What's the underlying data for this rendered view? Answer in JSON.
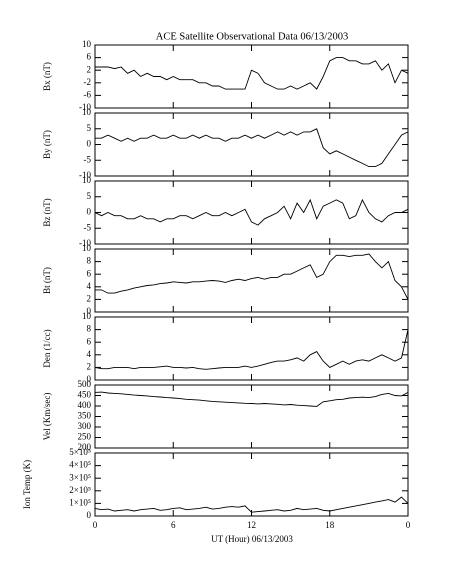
{
  "chart_data": [
    {
      "type": "line",
      "title": "ACE Satellite Observational Data   06/13/2003",
      "ylabel": "Bx (nT)",
      "ylim": [
        -10,
        10
      ],
      "yticks": [
        -10,
        -6,
        -2,
        2,
        6,
        10
      ],
      "color": "#000000",
      "values": [
        3,
        3,
        3,
        2.5,
        3,
        1,
        2,
        0,
        1,
        0,
        0,
        -1,
        0,
        -1,
        -1,
        -1,
        -2,
        -2,
        -3,
        -3,
        -4,
        -4,
        -4,
        -4,
        2,
        1,
        -2,
        -3,
        -4,
        -4,
        -3,
        -4,
        -3,
        -2,
        -4,
        0,
        5,
        6,
        6,
        5,
        5,
        4,
        4,
        5,
        2,
        4,
        -2,
        2,
        1
      ]
    },
    {
      "type": "line",
      "ylabel": "By (nT)",
      "ylim": [
        -10,
        10
      ],
      "yticks": [
        -10,
        -5,
        0,
        5,
        10
      ],
      "color": "#000000",
      "values": [
        2,
        2,
        3,
        2,
        1,
        2,
        1,
        2,
        2,
        3,
        2,
        2,
        3,
        2,
        2,
        3,
        2,
        3,
        2,
        2,
        1,
        2,
        2,
        3,
        2,
        3,
        2,
        3,
        4,
        3,
        4,
        3,
        4,
        4,
        5,
        -1,
        -3,
        -2,
        -3,
        -4,
        -5,
        -6,
        -7,
        -7,
        -6,
        -3,
        0,
        3,
        4
      ]
    },
    {
      "type": "line",
      "ylabel": "Bz (nT)",
      "ylim": [
        -10,
        10
      ],
      "yticks": [
        -10,
        -5,
        0,
        5,
        10
      ],
      "color": "#000000",
      "values": [
        0,
        -1,
        0,
        -1,
        -1,
        -2,
        -2,
        -1,
        -2,
        -2,
        -3,
        -2,
        -2,
        -1,
        -1,
        -2,
        -1,
        0,
        -1,
        -1,
        0,
        -1,
        0,
        1,
        -3,
        -4,
        -2,
        -1,
        0,
        2,
        -2,
        3,
        0,
        4,
        -2,
        2,
        3,
        4,
        3,
        -2,
        -1,
        4,
        0,
        -2,
        -3,
        -1,
        0,
        0,
        1
      ]
    },
    {
      "type": "line",
      "ylabel": "Bt (nT)",
      "ylim": [
        0,
        10
      ],
      "yticks": [
        0,
        2,
        4,
        6,
        8,
        10
      ],
      "color": "#000000",
      "values": [
        3.5,
        3.5,
        3,
        3,
        3.3,
        3.5,
        3.8,
        4,
        4.2,
        4.3,
        4.5,
        4.6,
        4.8,
        4.7,
        4.6,
        4.8,
        4.8,
        4.9,
        5,
        4.9,
        4.7,
        5,
        5.2,
        5,
        5.3,
        5.5,
        5.2,
        5.5,
        5.5,
        6,
        6,
        6.5,
        7,
        7.5,
        5.5,
        6,
        8,
        9,
        9,
        8.8,
        9,
        9,
        9.2,
        8,
        7,
        8,
        5,
        4,
        2
      ]
    },
    {
      "type": "line",
      "ylabel": "Den (1/cc)",
      "ylim": [
        0,
        10
      ],
      "yticks": [
        0,
        2,
        4,
        6,
        8,
        10
      ],
      "color": "#000000",
      "values": [
        2,
        1.8,
        1.8,
        2,
        2,
        2,
        1.8,
        2,
        2,
        2,
        2.1,
        2.2,
        2,
        2,
        1.9,
        2,
        1.8,
        1.7,
        1.8,
        1.9,
        2,
        2,
        2,
        2.2,
        2,
        2.2,
        2.5,
        2.8,
        3,
        3,
        3.2,
        3.5,
        3,
        4,
        4.5,
        3,
        2,
        2.5,
        3,
        2.5,
        3,
        3.2,
        3,
        3.5,
        4,
        3.5,
        3,
        3.5,
        8
      ]
    },
    {
      "type": "line",
      "ylabel": "Vel (Km/sec)",
      "ylim": [
        200,
        500
      ],
      "yticks": [
        200,
        250,
        300,
        350,
        400,
        450,
        500
      ],
      "color": "#000000",
      "values": [
        465,
        466,
        462,
        460,
        458,
        455,
        452,
        450,
        448,
        445,
        443,
        440,
        438,
        435,
        432,
        430,
        428,
        425,
        422,
        420,
        418,
        416,
        415,
        413,
        412,
        410,
        412,
        410,
        408,
        405,
        407,
        404,
        402,
        400,
        398,
        420,
        425,
        430,
        432,
        438,
        440,
        442,
        440,
        445,
        455,
        460,
        450,
        448,
        465
      ]
    },
    {
      "type": "line",
      "ylabel": "Ion Temp (K)",
      "ylim": [
        0,
        500000
      ],
      "yticks": [
        0,
        {
          "value": 100000,
          "label": "1×10⁵"
        },
        {
          "value": 200000,
          "label": "2×10⁵"
        },
        {
          "value": 300000,
          "label": "3×10⁵"
        },
        {
          "value": 400000,
          "label": "4×10⁵"
        },
        {
          "value": 500000,
          "label": "5×10⁵"
        }
      ],
      "color": "#000000",
      "values": [
        60000,
        50000,
        55000,
        40000,
        45000,
        50000,
        40000,
        50000,
        55000,
        60000,
        45000,
        50000,
        60000,
        65000,
        50000,
        55000,
        60000,
        70000,
        55000,
        60000,
        70000,
        75000,
        70000,
        80000,
        30000,
        35000,
        40000,
        45000,
        50000,
        40000,
        45000,
        60000,
        50000,
        55000,
        60000,
        45000,
        40000,
        50000,
        60000,
        70000,
        80000,
        90000,
        100000,
        110000,
        120000,
        130000,
        110000,
        150000,
        100000
      ],
      "xlabel": "UT (Hour)  06/13/2003",
      "xlim": [
        0,
        24
      ],
      "xticks": [
        0,
        6,
        12,
        18,
        {
          "value": 24,
          "label": "0"
        }
      ],
      "x": [
        0,
        0.5,
        1,
        1.5,
        2,
        2.5,
        3,
        3.5,
        4,
        4.5,
        5,
        5.5,
        6,
        6.5,
        7,
        7.5,
        8,
        8.5,
        9,
        9.5,
        10,
        10.5,
        11,
        11.5,
        12,
        12.5,
        13,
        13.5,
        14,
        14.5,
        15,
        15.5,
        16,
        16.5,
        17,
        17.5,
        18,
        18.5,
        19,
        19.5,
        20,
        20.5,
        21,
        21.5,
        22,
        22.5,
        23,
        23.5,
        24
      ]
    }
  ]
}
